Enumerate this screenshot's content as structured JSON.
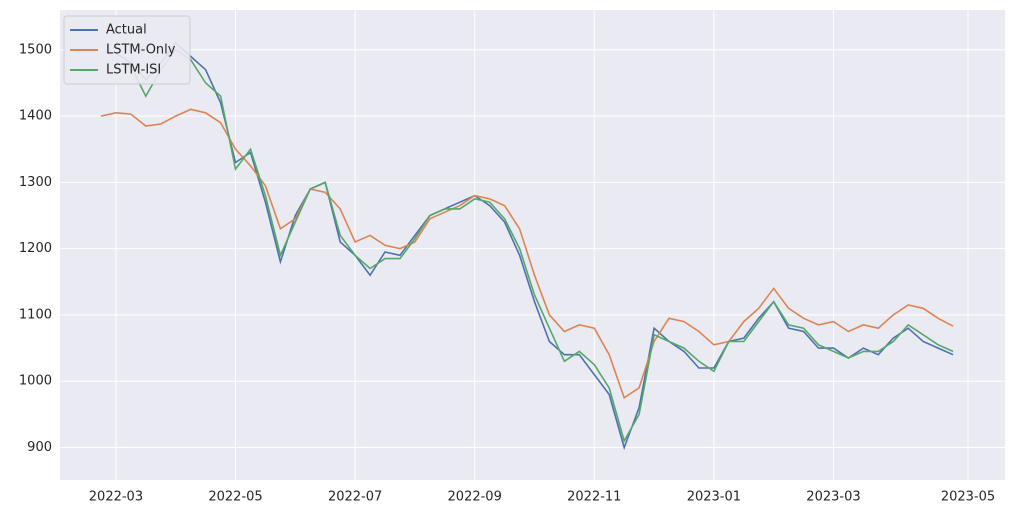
{
  "chart_data": {
    "type": "line",
    "categories": [
      null,
      "2022-03",
      null,
      null,
      null,
      null,
      null,
      null,
      null,
      "2022-05",
      null,
      null,
      null,
      null,
      null,
      null,
      null,
      "2022-07",
      null,
      null,
      null,
      null,
      null,
      null,
      null,
      "2022-09",
      null,
      null,
      null,
      null,
      null,
      null,
      null,
      "2022-11",
      null,
      null,
      null,
      null,
      null,
      null,
      null,
      "2023-01",
      null,
      null,
      null,
      null,
      null,
      null,
      null,
      "2023-03",
      null,
      null,
      null,
      null,
      null,
      null,
      null,
      null,
      "2023-05"
    ],
    "series": [
      {
        "name": "Actual",
        "color": "#4c72b0",
        "values": [
          null,
          1495,
          1480,
          1455,
          1480,
          1510,
          1490,
          1470,
          1420,
          1330,
          1345,
          1270,
          1180,
          1250,
          1290,
          1300,
          1210,
          1190,
          1160,
          1195,
          1190,
          1220,
          1250,
          1260,
          1270,
          1280,
          1265,
          1240,
          1190,
          1120,
          1060,
          1040,
          1040,
          1010,
          980,
          900,
          960,
          1080,
          1060,
          1045,
          1020,
          1020,
          1060,
          1065,
          1095,
          1120,
          1080,
          1075,
          1050,
          1050,
          1035,
          1050,
          1040,
          1065,
          1080,
          1060,
          1050,
          1040,
          null
        ]
      },
      {
        "name": "LSTM-Only",
        "color": "#dd8452",
        "values": [
          1400,
          1405,
          1403,
          1385,
          1388,
          1400,
          1410,
          1405,
          1390,
          1350,
          1325,
          1295,
          1230,
          1245,
          1290,
          1285,
          1260,
          1210,
          1220,
          1205,
          1200,
          1210,
          1245,
          1255,
          1265,
          1280,
          1275,
          1265,
          1230,
          1160,
          1100,
          1075,
          1085,
          1080,
          1040,
          975,
          990,
          1060,
          1095,
          1090,
          1075,
          1055,
          1060,
          1090,
          1110,
          1140,
          1110,
          1095,
          1085,
          1090,
          1075,
          1085,
          1080,
          1100,
          1115,
          1110,
          1095,
          1083,
          null
        ]
      },
      {
        "name": "LSTM-ISI",
        "color": "#55a868",
        "values": [
          null,
          1480,
          1475,
          1430,
          1470,
          1500,
          1485,
          1450,
          1430,
          1320,
          1350,
          1280,
          1190,
          1240,
          1290,
          1300,
          1220,
          1190,
          1170,
          1185,
          1185,
          1215,
          1250,
          1260,
          1260,
          1275,
          1270,
          1245,
          1200,
          1130,
          1080,
          1030,
          1045,
          1025,
          990,
          910,
          950,
          1070,
          1060,
          1050,
          1030,
          1015,
          1060,
          1060,
          1090,
          1120,
          1085,
          1080,
          1055,
          1045,
          1035,
          1045,
          1045,
          1060,
          1085,
          1070,
          1055,
          1045,
          null
        ]
      }
    ],
    "ylim": [
      851,
      1560
    ],
    "yticks": [
      900,
      1000,
      1100,
      1200,
      1300,
      1400,
      1500
    ],
    "grid": true,
    "legend": "upper-left"
  }
}
